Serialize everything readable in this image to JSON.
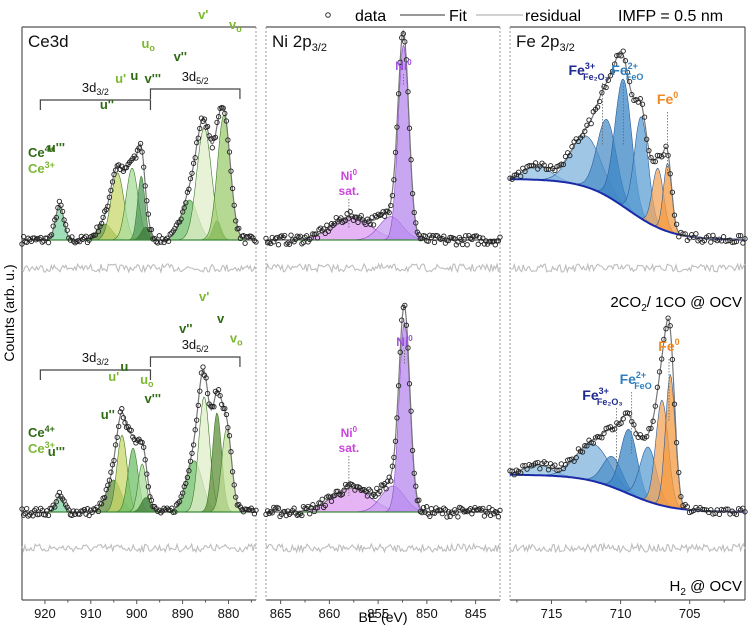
{
  "chart_data": {
    "type": "line",
    "figure": "XPS spectra, Ce3d / Ni 2p3/2 / Fe 2p3/2",
    "legend": {
      "placement": "top",
      "entries": [
        {
          "name": "data",
          "marker": "open-circle",
          "color": "#222222"
        },
        {
          "name": "Fit",
          "marker": "line",
          "color": "#777777"
        },
        {
          "name": "residual",
          "marker": "line",
          "color": "#bbbbbb"
        }
      ],
      "annotation": "IMFP = 0.5 nm"
    },
    "xlabel": "BE (eV)",
    "ylabel": "Counts (arb. u.)",
    "conditions": [
      "2CO₂/ 1CO @ OCV",
      "H₂ @ OCV"
    ],
    "condition_labels": {
      "top_main": "2CO",
      "top_sub": "2",
      "top_rest": "/ 1CO @ OCV",
      "bot_main": "H",
      "bot_sub": "2",
      "bot_rest": " @ OCV"
    },
    "panels": [
      {
        "id": "ce",
        "title": "Ce3d",
        "xlim": [
          925,
          874
        ],
        "xticks": [
          920,
          910,
          900,
          890,
          880
        ],
        "doublets": [
          {
            "label": "3d",
            "sub": "3/2",
            "from": 921,
            "to": 897
          },
          {
            "label": "3d",
            "sub": "5/2",
            "from": 897,
            "to": 877.5
          }
        ],
        "legend_states": [
          {
            "label": "Ce",
            "sup": "4+",
            "color": "#2e6b12"
          },
          {
            "label": "Ce",
            "sup": "3+",
            "color": "#7cb82f"
          }
        ],
        "rows": [
          {
            "condition": "2CO2/1CO @ OCV",
            "components": [
              {
                "name": "u'''",
                "center": 916.8,
                "height": 0.22,
                "width": 0.9,
                "color": "#7fd3a0",
                "state": "Ce4+"
              },
              {
                "name": "u''",
                "center": 907.0,
                "height": 0.1,
                "width": 1.6,
                "color": "#5d8f3a",
                "state": "Ce4+"
              },
              {
                "name": "u'",
                "center": 904.2,
                "height": 0.42,
                "width": 1.4,
                "color": "#c8d86a",
                "state": "Ce3+"
              },
              {
                "name": "u",
                "center": 901.0,
                "height": 0.45,
                "width": 1.3,
                "color": "#a9dc9c",
                "state": "Ce4+"
              },
              {
                "name": "u0",
                "center": 899.0,
                "height": 0.4,
                "width": 0.8,
                "color": "#4f9a5a",
                "state": "Ce3+"
              },
              {
                "name": "v'''",
                "center": 898.0,
                "height": 0.08,
                "width": 1.0,
                "color": "#3d7a3a",
                "state": "Ce4+"
              },
              {
                "name": "v''",
                "center": 888.5,
                "height": 0.25,
                "width": 1.8,
                "color": "#6fbf6a",
                "state": "Ce4+"
              },
              {
                "name": "v'",
                "center": 885.3,
                "height": 0.7,
                "width": 1.6,
                "color": "#dfeec8",
                "state": "Ce3+"
              },
              {
                "name": "v",
                "center": 882.5,
                "height": 0.12,
                "width": 0.9,
                "color": "#4e7d2a",
                "state": "Ce4+"
              },
              {
                "name": "v0",
                "center": 881.0,
                "height": 0.78,
                "width": 1.4,
                "color": "#9ccc6e",
                "state": "Ce3+"
              }
            ],
            "labels": [
              {
                "text": "u'''",
                "be": 917.5,
                "level": 0.55,
                "color": "#2e6b12"
              },
              {
                "text": "u''",
                "be": 906.5,
                "level": 0.82,
                "color": "#2e6b12"
              },
              {
                "text": "u'",
                "be": 903.5,
                "level": 0.98,
                "color": "#7cb82f"
              },
              {
                "text": "u",
                "be": 900.5,
                "level": 1.0,
                "color": "#2e6b12"
              },
              {
                "text": "uo",
                "be": 897.5,
                "level": 1.2,
                "color": "#7cb82f"
              },
              {
                "text": "v'''",
                "be": 896.5,
                "level": 0.98,
                "color": "#2e6b12"
              },
              {
                "text": "v''",
                "be": 890.5,
                "level": 1.12,
                "color": "#2e6b12"
              },
              {
                "text": "v'",
                "be": 885.5,
                "level": 1.38,
                "color": "#7cb82f"
              },
              {
                "text": "v",
                "be": 882.0,
                "level": 1.52,
                "color": "#2e6b12"
              },
              {
                "text": "vo",
                "be": 878.5,
                "level": 1.32,
                "color": "#7cb82f"
              }
            ]
          },
          {
            "condition": "H2 @ OCV",
            "components": [
              {
                "name": "u'''",
                "center": 916.8,
                "height": 0.1,
                "width": 0.9,
                "color": "#7fd3a0",
                "state": "Ce4+"
              },
              {
                "name": "u''",
                "center": 905.0,
                "height": 0.2,
                "width": 1.6,
                "color": "#5d8f3a",
                "state": "Ce4+"
              },
              {
                "name": "u'",
                "center": 903.2,
                "height": 0.48,
                "width": 1.1,
                "color": "#c8d86a",
                "state": "Ce3+"
              },
              {
                "name": "u",
                "center": 900.8,
                "height": 0.4,
                "width": 1.1,
                "color": "#6fbf6a",
                "state": "Ce4+"
              },
              {
                "name": "u0",
                "center": 898.8,
                "height": 0.3,
                "width": 0.9,
                "color": "#a9dc9c",
                "state": "Ce3+"
              },
              {
                "name": "v'''",
                "center": 898.0,
                "height": 0.09,
                "width": 1.0,
                "color": "#3d7a3a",
                "state": "Ce4+"
              },
              {
                "name": "v''",
                "center": 887.5,
                "height": 0.32,
                "width": 1.8,
                "color": "#6fbf6a",
                "state": "Ce4+"
              },
              {
                "name": "v'",
                "center": 885.3,
                "height": 0.72,
                "width": 1.2,
                "color": "#dfeec8",
                "state": "Ce3+"
              },
              {
                "name": "v",
                "center": 882.5,
                "height": 0.62,
                "width": 1.0,
                "color": "#5d8f3a",
                "state": "Ce4+"
              },
              {
                "name": "v0",
                "center": 880.4,
                "height": 0.52,
                "width": 1.1,
                "color": "#c3e09a",
                "state": "Ce3+"
              }
            ],
            "labels": [
              {
                "text": "u'''",
                "be": 917.5,
                "level": 0.35,
                "color": "#2e6b12"
              },
              {
                "text": "u''",
                "be": 906.3,
                "level": 0.58,
                "color": "#2e6b12"
              },
              {
                "text": "u'",
                "be": 905.0,
                "level": 0.82,
                "color": "#7cb82f"
              },
              {
                "text": "u",
                "be": 902.7,
                "level": 0.88,
                "color": "#2e6b12"
              },
              {
                "text": "uo",
                "be": 897.8,
                "level": 0.8,
                "color": "#7cb82f"
              },
              {
                "text": "v'''",
                "be": 896.5,
                "level": 0.68,
                "color": "#2e6b12"
              },
              {
                "text": "v''",
                "be": 889.3,
                "level": 1.12,
                "color": "#2e6b12"
              },
              {
                "text": "v'",
                "be": 885.3,
                "level": 1.32,
                "color": "#7cb82f"
              },
              {
                "text": "v",
                "be": 881.7,
                "level": 1.18,
                "color": "#2e6b12"
              },
              {
                "text": "vo",
                "be": 878.3,
                "level": 1.06,
                "color": "#7cb82f"
              }
            ]
          }
        ]
      },
      {
        "id": "ni",
        "title": "Ni 2p",
        "title_sub": "3/2",
        "xlim": [
          866.5,
          842.5
        ],
        "xticks": [
          865,
          860,
          855,
          850,
          845
        ],
        "rows": [
          {
            "condition": "2CO2/1CO @ OCV",
            "components": [
              {
                "name": "Ni0 sat.",
                "center": 857.8,
                "height": 0.12,
                "width": 2.0,
                "color": "#dd9af0"
              },
              {
                "name": "Ni0 shoulder",
                "center": 853.7,
                "height": 0.12,
                "width": 1.2,
                "color": "#c89cf2"
              },
              {
                "name": "Ni0",
                "center": 852.4,
                "height": 1.0,
                "width": 0.55,
                "color": "#b788ee"
              }
            ],
            "labels": [
              {
                "text": "Ni",
                "sup": "0",
                "be": 852.4,
                "line": true,
                "color": "#9b4fe0"
              },
              {
                "text": "Ni",
                "sup": "0",
                "sub2": "sat.",
                "be": 858.0,
                "line": true,
                "color": "#cc44dd"
              }
            ]
          },
          {
            "condition": "H2 @ OCV",
            "components": [
              {
                "name": "Ni0 sat.",
                "center": 857.8,
                "height": 0.12,
                "width": 2.0,
                "color": "#dd9af0"
              },
              {
                "name": "Ni0 shoulder",
                "center": 853.5,
                "height": 0.13,
                "width": 1.2,
                "color": "#c89cf2"
              },
              {
                "name": "Ni0",
                "center": 852.3,
                "height": 0.95,
                "width": 0.55,
                "color": "#b788ee"
              }
            ],
            "labels": [
              {
                "text": "Ni",
                "sup": "0",
                "be": 852.3,
                "line": true,
                "color": "#9b4fe0"
              },
              {
                "text": "Ni",
                "sup": "0",
                "sub2": "sat.",
                "be": 858.0,
                "line": true,
                "color": "#cc44dd"
              }
            ]
          }
        ]
      },
      {
        "id": "fe",
        "title": "Fe 2p",
        "title_sub": "3/2",
        "xlim": [
          718,
          701
        ],
        "xticks": [
          715,
          710,
          705
        ],
        "rows": [
          {
            "condition": "2CO2/1CO @ OCV",
            "components": [
              {
                "name": "Fe3+ sat",
                "center": 716.0,
                "height": 0.08,
                "width": 1.0,
                "color": "#8fbfe0"
              },
              {
                "name": "Fe3+ a",
                "center": 712.5,
                "height": 0.3,
                "width": 1.1,
                "color": "#7fb3dc"
              },
              {
                "name": "Fe3+ b",
                "center": 711.0,
                "height": 0.45,
                "width": 0.7,
                "color": "#4d8fc8"
              },
              {
                "name": "Fe2+ a",
                "center": 709.8,
                "height": 0.75,
                "width": 0.6,
                "color": "#3b86c6"
              },
              {
                "name": "Fe2+ b",
                "center": 708.5,
                "height": 0.6,
                "width": 0.5,
                "color": "#5ea0d4"
              },
              {
                "name": "Fe0 a",
                "center": 707.3,
                "height": 0.35,
                "width": 0.4,
                "color": "#f2a45a"
              },
              {
                "name": "Fe0 b",
                "center": 706.6,
                "height": 0.4,
                "width": 0.3,
                "color": "#f49a40"
              }
            ],
            "labels": [
              {
                "text": "Fe",
                "sup": "3+",
                "sub": "Fe₂O₃",
                "be": 711.3,
                "color": "#1f2a8f"
              },
              {
                "text": "Fe",
                "sup": "2+",
                "sub": "FeO",
                "be": 709.8,
                "color": "#2f7fc0"
              },
              {
                "text": "Fe",
                "sup": "0",
                "be": 706.6,
                "color": "#f08a24"
              }
            ]
          },
          {
            "condition": "H2 @ OCV",
            "components": [
              {
                "name": "Fe3+ sat",
                "center": 716.0,
                "height": 0.06,
                "width": 1.0,
                "color": "#8fbfe0"
              },
              {
                "name": "Fe3+ a",
                "center": 712.0,
                "height": 0.22,
                "width": 1.2,
                "color": "#7fb3dc"
              },
              {
                "name": "Fe3+ b",
                "center": 710.6,
                "height": 0.18,
                "width": 0.7,
                "color": "#4d8fc8"
              },
              {
                "name": "Fe2+ a",
                "center": 709.4,
                "height": 0.38,
                "width": 0.6,
                "color": "#3b86c6"
              },
              {
                "name": "Fe2+ b",
                "center": 708.0,
                "height": 0.32,
                "width": 0.6,
                "color": "#5ea0d4"
              },
              {
                "name": "Fe0 a",
                "center": 707.0,
                "height": 0.62,
                "width": 0.45,
                "color": "#f2a45a"
              },
              {
                "name": "Fe0 b",
                "center": 706.4,
                "height": 0.78,
                "width": 0.35,
                "color": "#f49a40"
              }
            ],
            "labels": [
              {
                "text": "Fe",
                "sup": "3+",
                "sub": "Fe₂O₃",
                "be": 710.3,
                "color": "#1f2a8f"
              },
              {
                "text": "Fe",
                "sup": "2+",
                "sub": "FeO",
                "be": 709.2,
                "color": "#2f7fc0"
              },
              {
                "text": "Fe",
                "sup": "0",
                "be": 706.5,
                "color": "#f08a24"
              }
            ]
          }
        ]
      }
    ]
  }
}
